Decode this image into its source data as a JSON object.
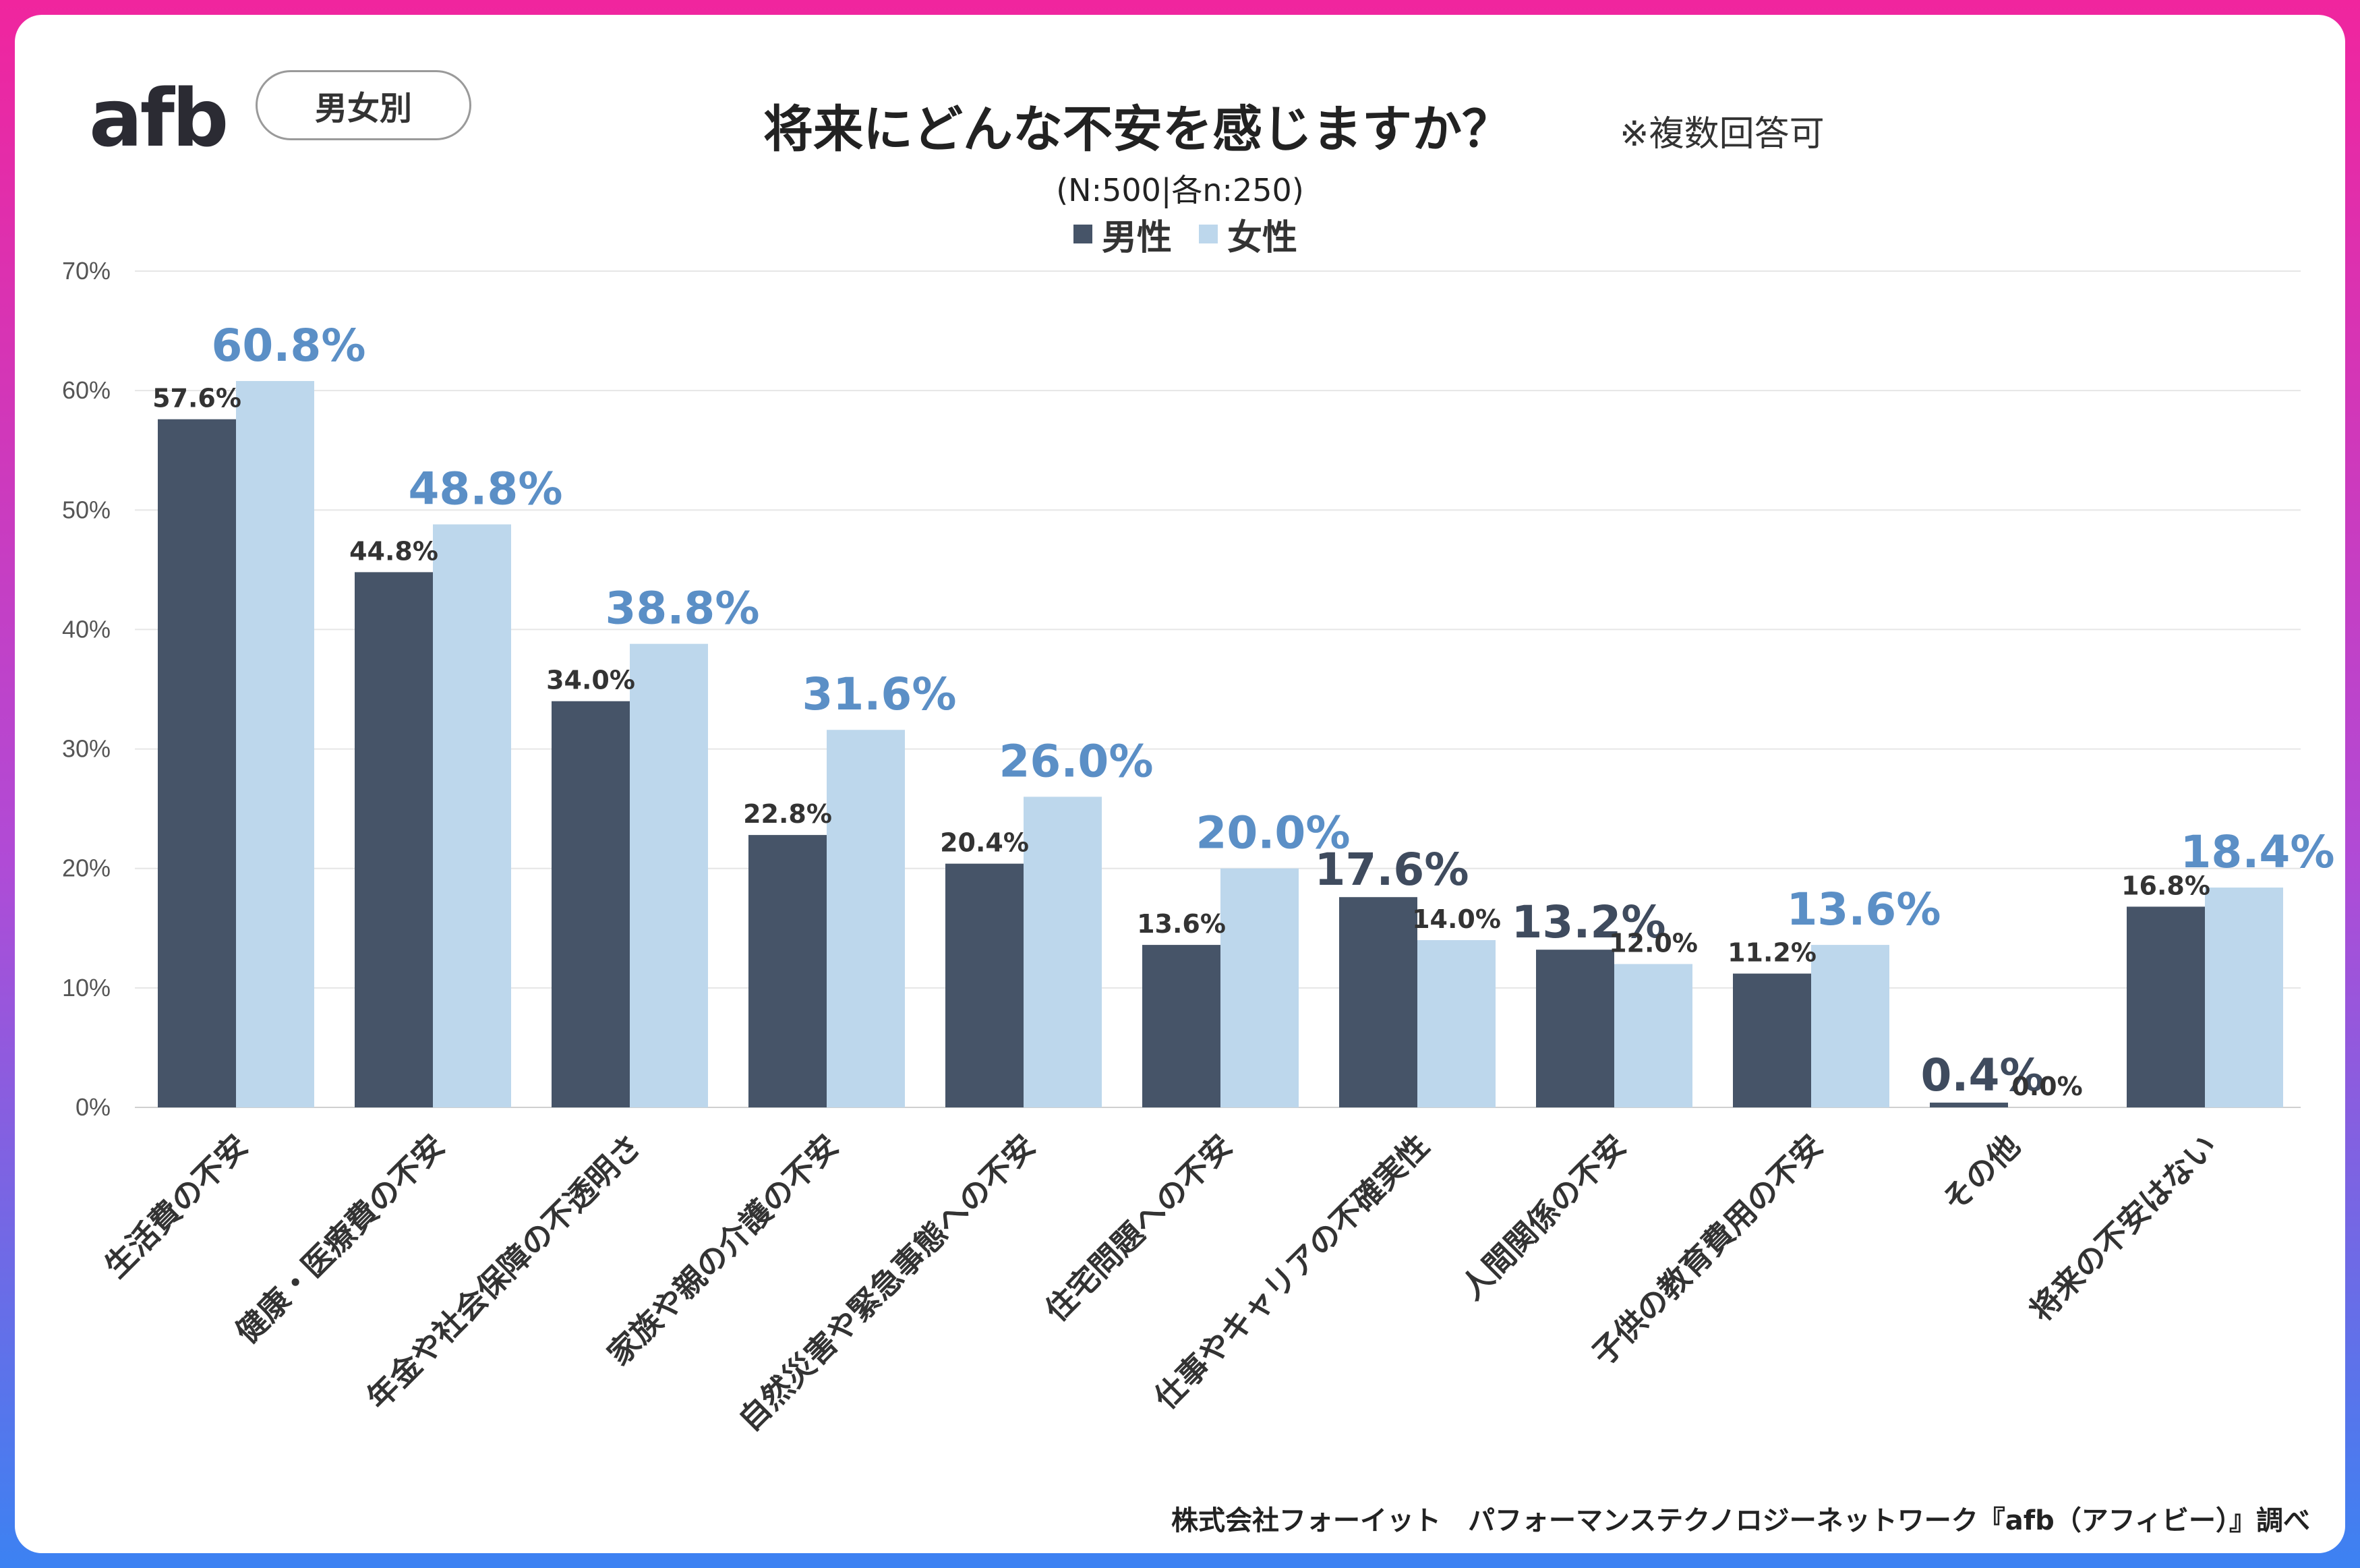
{
  "header": {
    "logo_text": "afb",
    "segment_tag": "男女別",
    "title": "将来にどんな不安を感じますか？",
    "note": "※複数回答可",
    "subtitle": "(N:500|各n:250)"
  },
  "footer": {
    "source": "株式会社フォーイット　パフォーマンステクノロジーネットワーク『afb（アフィビー）』調べ"
  },
  "colors": {
    "male": "#465468",
    "female": "#bdd7ec",
    "female_label": "#5b8fc6",
    "male_big_label": "#3f4b5e",
    "grid": "#e6e6e6",
    "axis_text": "#555555"
  },
  "chart_data": {
    "type": "bar",
    "title": "将来にどんな不安を感じますか？",
    "xlabel": "",
    "ylabel": "",
    "ylim": [
      0,
      70
    ],
    "yticks": [
      0,
      10,
      20,
      30,
      40,
      50,
      60,
      70
    ],
    "ytick_labels": [
      "0%",
      "10%",
      "20%",
      "30%",
      "40%",
      "50%",
      "60%",
      "70%"
    ],
    "legend_position": "top-center",
    "grid": true,
    "categories": [
      "生活費の不安",
      "健康・医療費の不安",
      "年金や社会保障の不透明さ",
      "家族や親の介護の不安",
      "自然災害や緊急事態への不安",
      "住宅問題への不安",
      "仕事やキャリアの不確実性",
      "人間関係の不安",
      "子供の教育費用の不安",
      "その他",
      "将来の不安はない"
    ],
    "series": [
      {
        "name": "男性",
        "values": [
          57.6,
          44.8,
          34.0,
          22.8,
          20.4,
          13.6,
          17.6,
          13.2,
          11.2,
          0.4,
          16.8
        ],
        "labels": [
          "57.6%",
          "44.8%",
          "34.0%",
          "22.8%",
          "20.4%",
          "13.6%",
          "17.6%",
          "13.2%",
          "11.2%",
          "0.4%",
          "16.8%"
        ]
      },
      {
        "name": "女性",
        "values": [
          60.8,
          48.8,
          38.8,
          31.6,
          26.0,
          20.0,
          14.0,
          12.0,
          13.6,
          0.0,
          18.4
        ],
        "labels": [
          "60.8%",
          "48.8%",
          "38.8%",
          "31.6%",
          "26.0%",
          "20.0%",
          "14.0%",
          "12.0%",
          "13.6%",
          "0.0%",
          "18.4%"
        ]
      }
    ]
  }
}
